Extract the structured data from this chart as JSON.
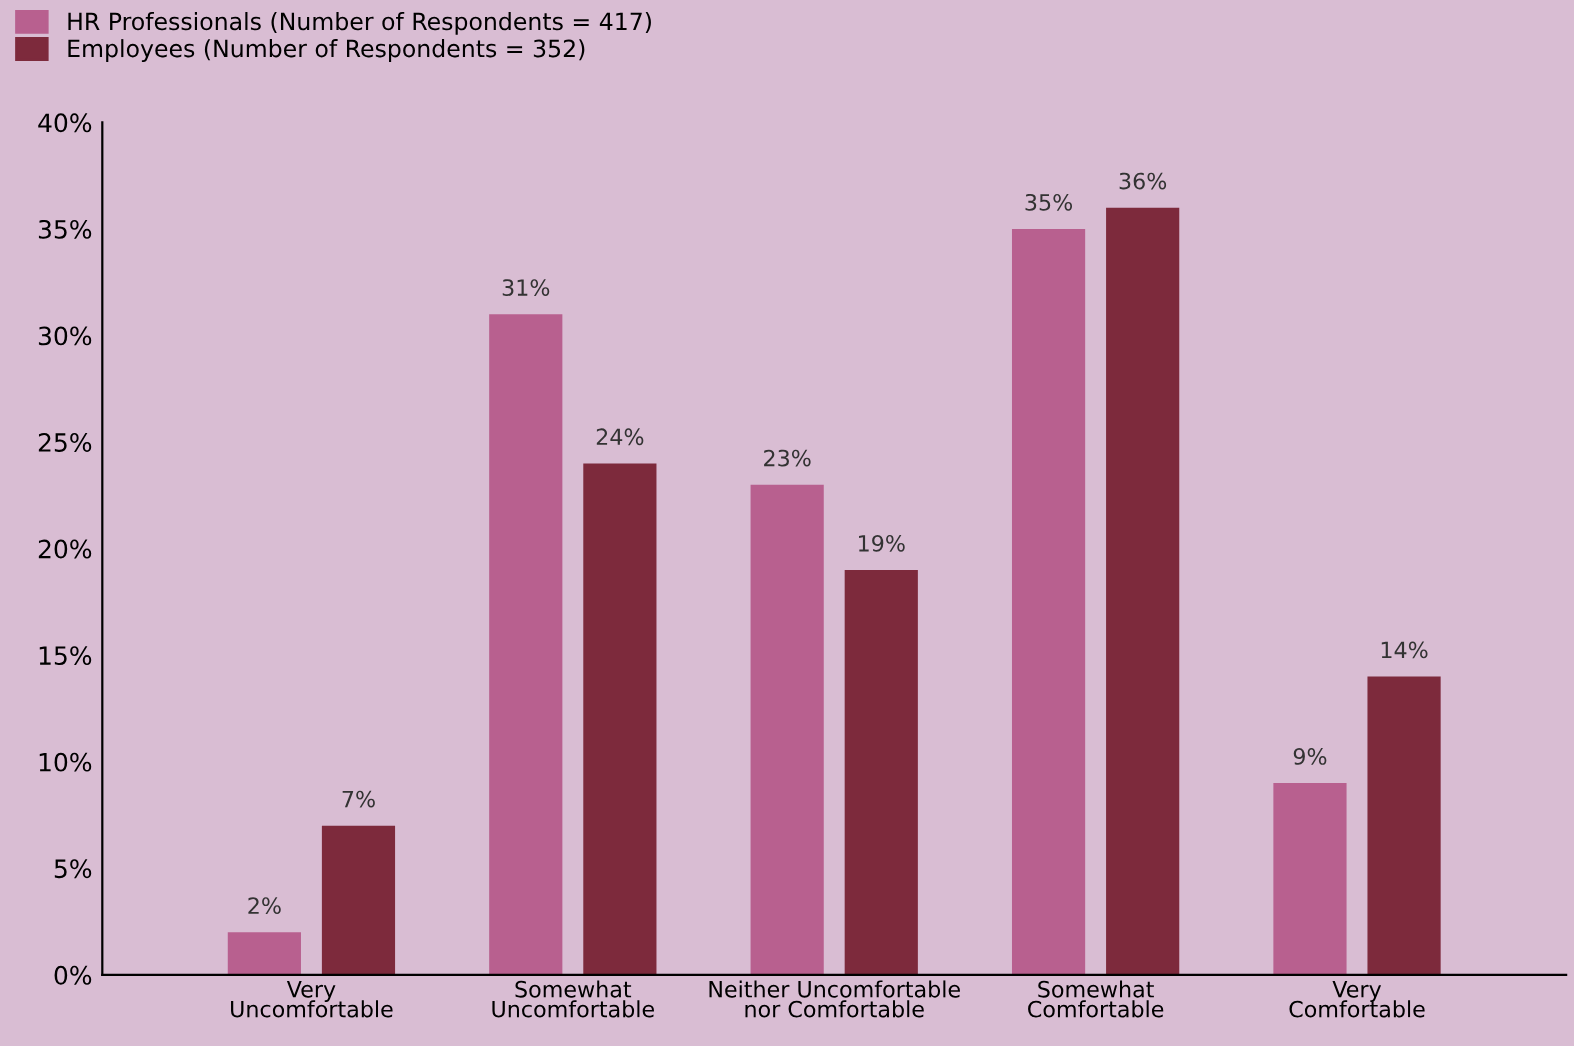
{
  "chart_data": {
    "type": "bar",
    "categories": [
      "Very\nUncomfortable",
      "Somewhat\nUncomfortable",
      "Neither Uncomfortable\nnor Comfortable",
      "Somewhat\nComfortable",
      "Very\nComfortable"
    ],
    "series": [
      {
        "name": "HR Professionals (Number of Respondents = 417)",
        "color": "#b8608f",
        "values": [
          2,
          31,
          23,
          35,
          9
        ],
        "value_labels": [
          "2%",
          "31%",
          "23%",
          "35%",
          "9%"
        ]
      },
      {
        "name": "Employees (Number of Respondents = 352)",
        "color": "#7d2a3c",
        "values": [
          7,
          24,
          19,
          36,
          14
        ],
        "value_labels": [
          "7%",
          "24%",
          "19%",
          "36%",
          "14%"
        ]
      }
    ],
    "ylim": [
      0,
      40
    ],
    "yticks": [
      {
        "value": 0,
        "label": "0%"
      },
      {
        "value": 5,
        "label": "5%"
      },
      {
        "value": 10,
        "label": "10%"
      },
      {
        "value": 15,
        "label": "15%"
      },
      {
        "value": 20,
        "label": "20%"
      },
      {
        "value": 25,
        "label": "25%"
      },
      {
        "value": 30,
        "label": "30%"
      },
      {
        "value": 35,
        "label": "35%"
      },
      {
        "value": 40,
        "label": "40%"
      }
    ],
    "grid": false,
    "legend": "top left"
  }
}
